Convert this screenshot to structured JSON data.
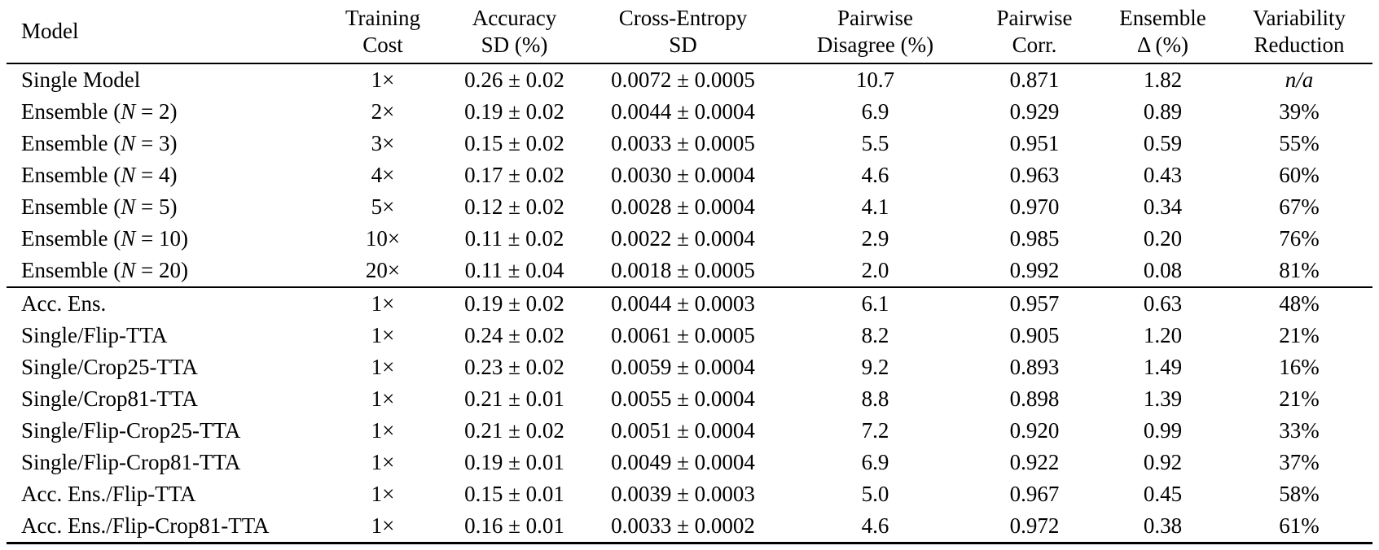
{
  "table": {
    "columns": [
      {
        "id": "model",
        "line1": "Model",
        "line2": ""
      },
      {
        "id": "training_cost",
        "line1": "Training",
        "line2": "Cost"
      },
      {
        "id": "accuracy_sd",
        "line1": "Accuracy",
        "line2": "SD (%)"
      },
      {
        "id": "cross_entropy_sd",
        "line1": "Cross-Entropy",
        "line2": "SD"
      },
      {
        "id": "pairwise_disagree",
        "line1": "Pairwise",
        "line2": "Disagree (%)"
      },
      {
        "id": "pairwise_corr",
        "line1": "Pairwise",
        "line2": "Corr."
      },
      {
        "id": "ensemble_delta",
        "line1": "Ensemble",
        "line2": "Δ (%)"
      },
      {
        "id": "variability_reduction",
        "line1": "Variability",
        "line2": "Reduction"
      }
    ],
    "groups": [
      {
        "rows": [
          {
            "model": "Single Model",
            "training_cost": "1×",
            "accuracy_sd": "0.26 ± 0.02",
            "cross_entropy_sd": "0.0072 ± 0.0005",
            "pairwise_disagree": "10.7",
            "pairwise_corr": "0.871",
            "ensemble_delta": "1.82",
            "variability_reduction": "n/a"
          },
          {
            "model": "Ensemble (N = 2)",
            "training_cost": "2×",
            "accuracy_sd": "0.19 ± 0.02",
            "cross_entropy_sd": "0.0044 ± 0.0004",
            "pairwise_disagree": "6.9",
            "pairwise_corr": "0.929",
            "ensemble_delta": "0.89",
            "variability_reduction": "39%"
          },
          {
            "model": "Ensemble (N = 3)",
            "training_cost": "3×",
            "accuracy_sd": "0.15 ± 0.02",
            "cross_entropy_sd": "0.0033 ± 0.0005",
            "pairwise_disagree": "5.5",
            "pairwise_corr": "0.951",
            "ensemble_delta": "0.59",
            "variability_reduction": "55%"
          },
          {
            "model": "Ensemble (N = 4)",
            "training_cost": "4×",
            "accuracy_sd": "0.17 ± 0.02",
            "cross_entropy_sd": "0.0030 ± 0.0004",
            "pairwise_disagree": "4.6",
            "pairwise_corr": "0.963",
            "ensemble_delta": "0.43",
            "variability_reduction": "60%"
          },
          {
            "model": "Ensemble (N = 5)",
            "training_cost": "5×",
            "accuracy_sd": "0.12 ± 0.02",
            "cross_entropy_sd": "0.0028 ± 0.0004",
            "pairwise_disagree": "4.1",
            "pairwise_corr": "0.970",
            "ensemble_delta": "0.34",
            "variability_reduction": "67%"
          },
          {
            "model": "Ensemble (N = 10)",
            "training_cost": "10×",
            "accuracy_sd": "0.11 ± 0.02",
            "cross_entropy_sd": "0.0022 ± 0.0004",
            "pairwise_disagree": "2.9",
            "pairwise_corr": "0.985",
            "ensemble_delta": "0.20",
            "variability_reduction": "76%"
          },
          {
            "model": "Ensemble (N = 20)",
            "training_cost": "20×",
            "accuracy_sd": "0.11 ± 0.04",
            "cross_entropy_sd": "0.0018 ± 0.0005",
            "pairwise_disagree": "2.0",
            "pairwise_corr": "0.992",
            "ensemble_delta": "0.08",
            "variability_reduction": "81%"
          }
        ]
      },
      {
        "rows": [
          {
            "model": "Acc. Ens.",
            "training_cost": "1×",
            "accuracy_sd": "0.19 ± 0.02",
            "cross_entropy_sd": "0.0044 ± 0.0003",
            "pairwise_disagree": "6.1",
            "pairwise_corr": "0.957",
            "ensemble_delta": "0.63",
            "variability_reduction": "48%"
          },
          {
            "model": "Single/Flip-TTA",
            "training_cost": "1×",
            "accuracy_sd": "0.24 ± 0.02",
            "cross_entropy_sd": "0.0061 ± 0.0005",
            "pairwise_disagree": "8.2",
            "pairwise_corr": "0.905",
            "ensemble_delta": "1.20",
            "variability_reduction": "21%"
          },
          {
            "model": "Single/Crop25-TTA",
            "training_cost": "1×",
            "accuracy_sd": "0.23 ± 0.02",
            "cross_entropy_sd": "0.0059 ± 0.0004",
            "pairwise_disagree": "9.2",
            "pairwise_corr": "0.893",
            "ensemble_delta": "1.49",
            "variability_reduction": "16%"
          },
          {
            "model": "Single/Crop81-TTA",
            "training_cost": "1×",
            "accuracy_sd": "0.21 ± 0.01",
            "cross_entropy_sd": "0.0055 ± 0.0004",
            "pairwise_disagree": "8.8",
            "pairwise_corr": "0.898",
            "ensemble_delta": "1.39",
            "variability_reduction": "21%"
          },
          {
            "model": "Single/Flip-Crop25-TTA",
            "training_cost": "1×",
            "accuracy_sd": "0.21 ± 0.02",
            "cross_entropy_sd": "0.0051 ± 0.0004",
            "pairwise_disagree": "7.2",
            "pairwise_corr": "0.920",
            "ensemble_delta": "0.99",
            "variability_reduction": "33%"
          },
          {
            "model": "Single/Flip-Crop81-TTA",
            "training_cost": "1×",
            "accuracy_sd": "0.19 ± 0.01",
            "cross_entropy_sd": "0.0049 ± 0.0004",
            "pairwise_disagree": "6.9",
            "pairwise_corr": "0.922",
            "ensemble_delta": "0.92",
            "variability_reduction": "37%"
          },
          {
            "model": "Acc. Ens./Flip-TTA",
            "training_cost": "1×",
            "accuracy_sd": "0.15 ± 0.01",
            "cross_entropy_sd": "0.0039 ± 0.0003",
            "pairwise_disagree": "5.0",
            "pairwise_corr": "0.967",
            "ensemble_delta": "0.45",
            "variability_reduction": "58%"
          },
          {
            "model": "Acc. Ens./Flip-Crop81-TTA",
            "training_cost": "1×",
            "accuracy_sd": "0.16 ± 0.01",
            "cross_entropy_sd": "0.0033 ± 0.0002",
            "pairwise_disagree": "4.6",
            "pairwise_corr": "0.972",
            "ensemble_delta": "0.38",
            "variability_reduction": "61%"
          }
        ]
      }
    ]
  }
}
